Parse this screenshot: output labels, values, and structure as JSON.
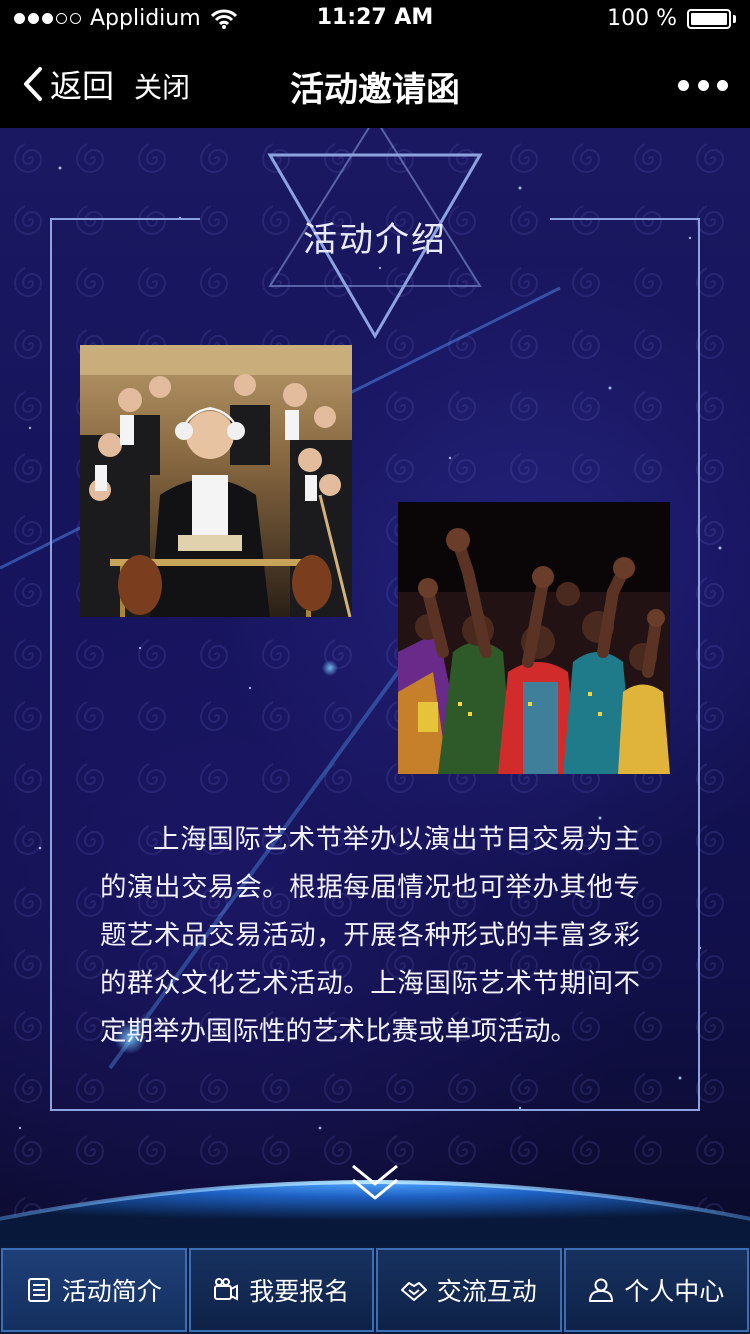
{
  "status_bar": {
    "carrier": "Applidium",
    "time": "11:27 AM",
    "battery": "100 %",
    "signal_bars_filled": 3,
    "signal_bars_total": 5
  },
  "nav": {
    "back_label": "返回",
    "close_label": "关闭",
    "title": "活动邀请函",
    "more_icon": "more-icon"
  },
  "section": {
    "title": "活动介绍",
    "intro_text": "上海国际艺术节举办以演出节目交易为主的演出交易会。根据每届情况也可举办其他专题艺术品交易活动，开展各种形式的丰富多彩的群众文化艺术活动。上海国际艺术节期间不定期举办国际性的艺术比赛或单项活动。"
  },
  "tabs": [
    {
      "label": "活动简介",
      "icon": "list-icon",
      "active": true
    },
    {
      "label": "我要报名",
      "icon": "camera-icon",
      "active": false
    },
    {
      "label": "交流互动",
      "icon": "handshake-icon",
      "active": false
    },
    {
      "label": "个人中心",
      "icon": "user-icon",
      "active": false
    }
  ],
  "colors": {
    "background": "#15135a",
    "accent": "#3a6fb5",
    "frame": "#8fa2e0"
  }
}
